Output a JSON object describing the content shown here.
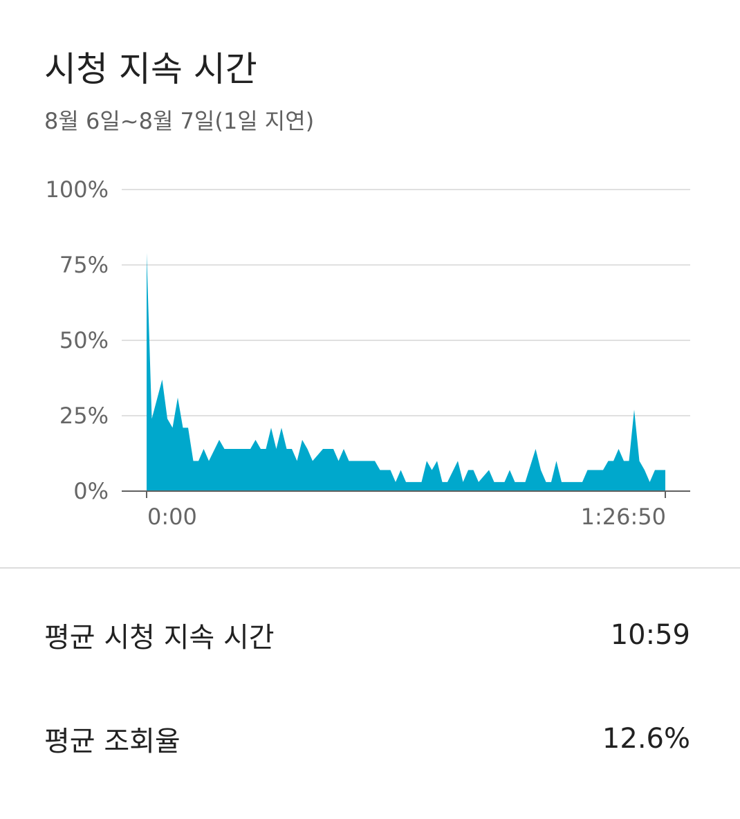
{
  "title": "시청 지속 시간",
  "subtitle": "8월 6일~8월 7일(1일 지연)",
  "colors": {
    "area": "#00a8cc",
    "grid": "#e0e0e0",
    "axis": "#606060",
    "label": "#666666"
  },
  "chart_data": {
    "type": "area",
    "title": "",
    "xlabel": "",
    "ylabel": "",
    "ylim": [
      0,
      100
    ],
    "y_ticks": [
      "100%",
      "75%",
      "50%",
      "25%",
      "0%"
    ],
    "y_tick_values": [
      100,
      75,
      50,
      25,
      0
    ],
    "x_tick_labels": [
      "0:00",
      "1:26:50"
    ],
    "x_range_seconds": [
      0,
      5210
    ],
    "grid": true,
    "series": [
      {
        "x_fraction": [
          0,
          0.01,
          0.03,
          0.04,
          0.05,
          0.06,
          0.07,
          0.08,
          0.09,
          0.1,
          0.11,
          0.12,
          0.14,
          0.15,
          0.16,
          0.18,
          0.2,
          0.21,
          0.22,
          0.23,
          0.24,
          0.25,
          0.26,
          0.27,
          0.28,
          0.29,
          0.3,
          0.31,
          0.32,
          0.34,
          0.35,
          0.36,
          0.37,
          0.38,
          0.39,
          0.4,
          0.42,
          0.43,
          0.44,
          0.45,
          0.47,
          0.48,
          0.49,
          0.5,
          0.51,
          0.52,
          0.53,
          0.54,
          0.55,
          0.56,
          0.57,
          0.58,
          0.6,
          0.61,
          0.62,
          0.63,
          0.64,
          0.66,
          0.67,
          0.68,
          0.69,
          0.7,
          0.71,
          0.72,
          0.73,
          0.75,
          0.76,
          0.77,
          0.78,
          0.79,
          0.8,
          0.81,
          0.82,
          0.83,
          0.84,
          0.85,
          0.86,
          0.87,
          0.88,
          0.89,
          0.9,
          0.91,
          0.92,
          0.93,
          0.94,
          0.95,
          0.96,
          0.97,
          0.98,
          0.99,
          1
        ],
        "values": [
          79,
          24,
          37,
          24,
          21,
          31,
          21,
          21,
          10,
          10,
          14,
          10,
          17,
          14,
          14,
          14,
          14,
          17,
          14,
          14,
          21,
          14,
          21,
          14,
          14,
          10,
          17,
          14,
          10,
          14,
          14,
          14,
          10,
          14,
          10,
          10,
          10,
          10,
          10,
          7,
          7,
          3,
          7,
          3,
          3,
          3,
          3,
          10,
          7,
          10,
          3,
          3,
          10,
          3,
          7,
          7,
          3,
          7,
          3,
          3,
          3,
          7,
          3,
          3,
          3,
          14,
          7,
          3,
          3,
          10,
          3,
          3,
          3,
          3,
          3,
          7,
          7,
          7,
          7,
          10,
          10,
          14,
          10,
          10,
          27,
          10,
          7,
          3,
          7,
          7,
          7
        ]
      }
    ]
  },
  "stats": [
    {
      "label": "평균 시청 지속 시간",
      "value": "10:59"
    },
    {
      "label": "평균 조회율",
      "value": "12.6%"
    }
  ]
}
